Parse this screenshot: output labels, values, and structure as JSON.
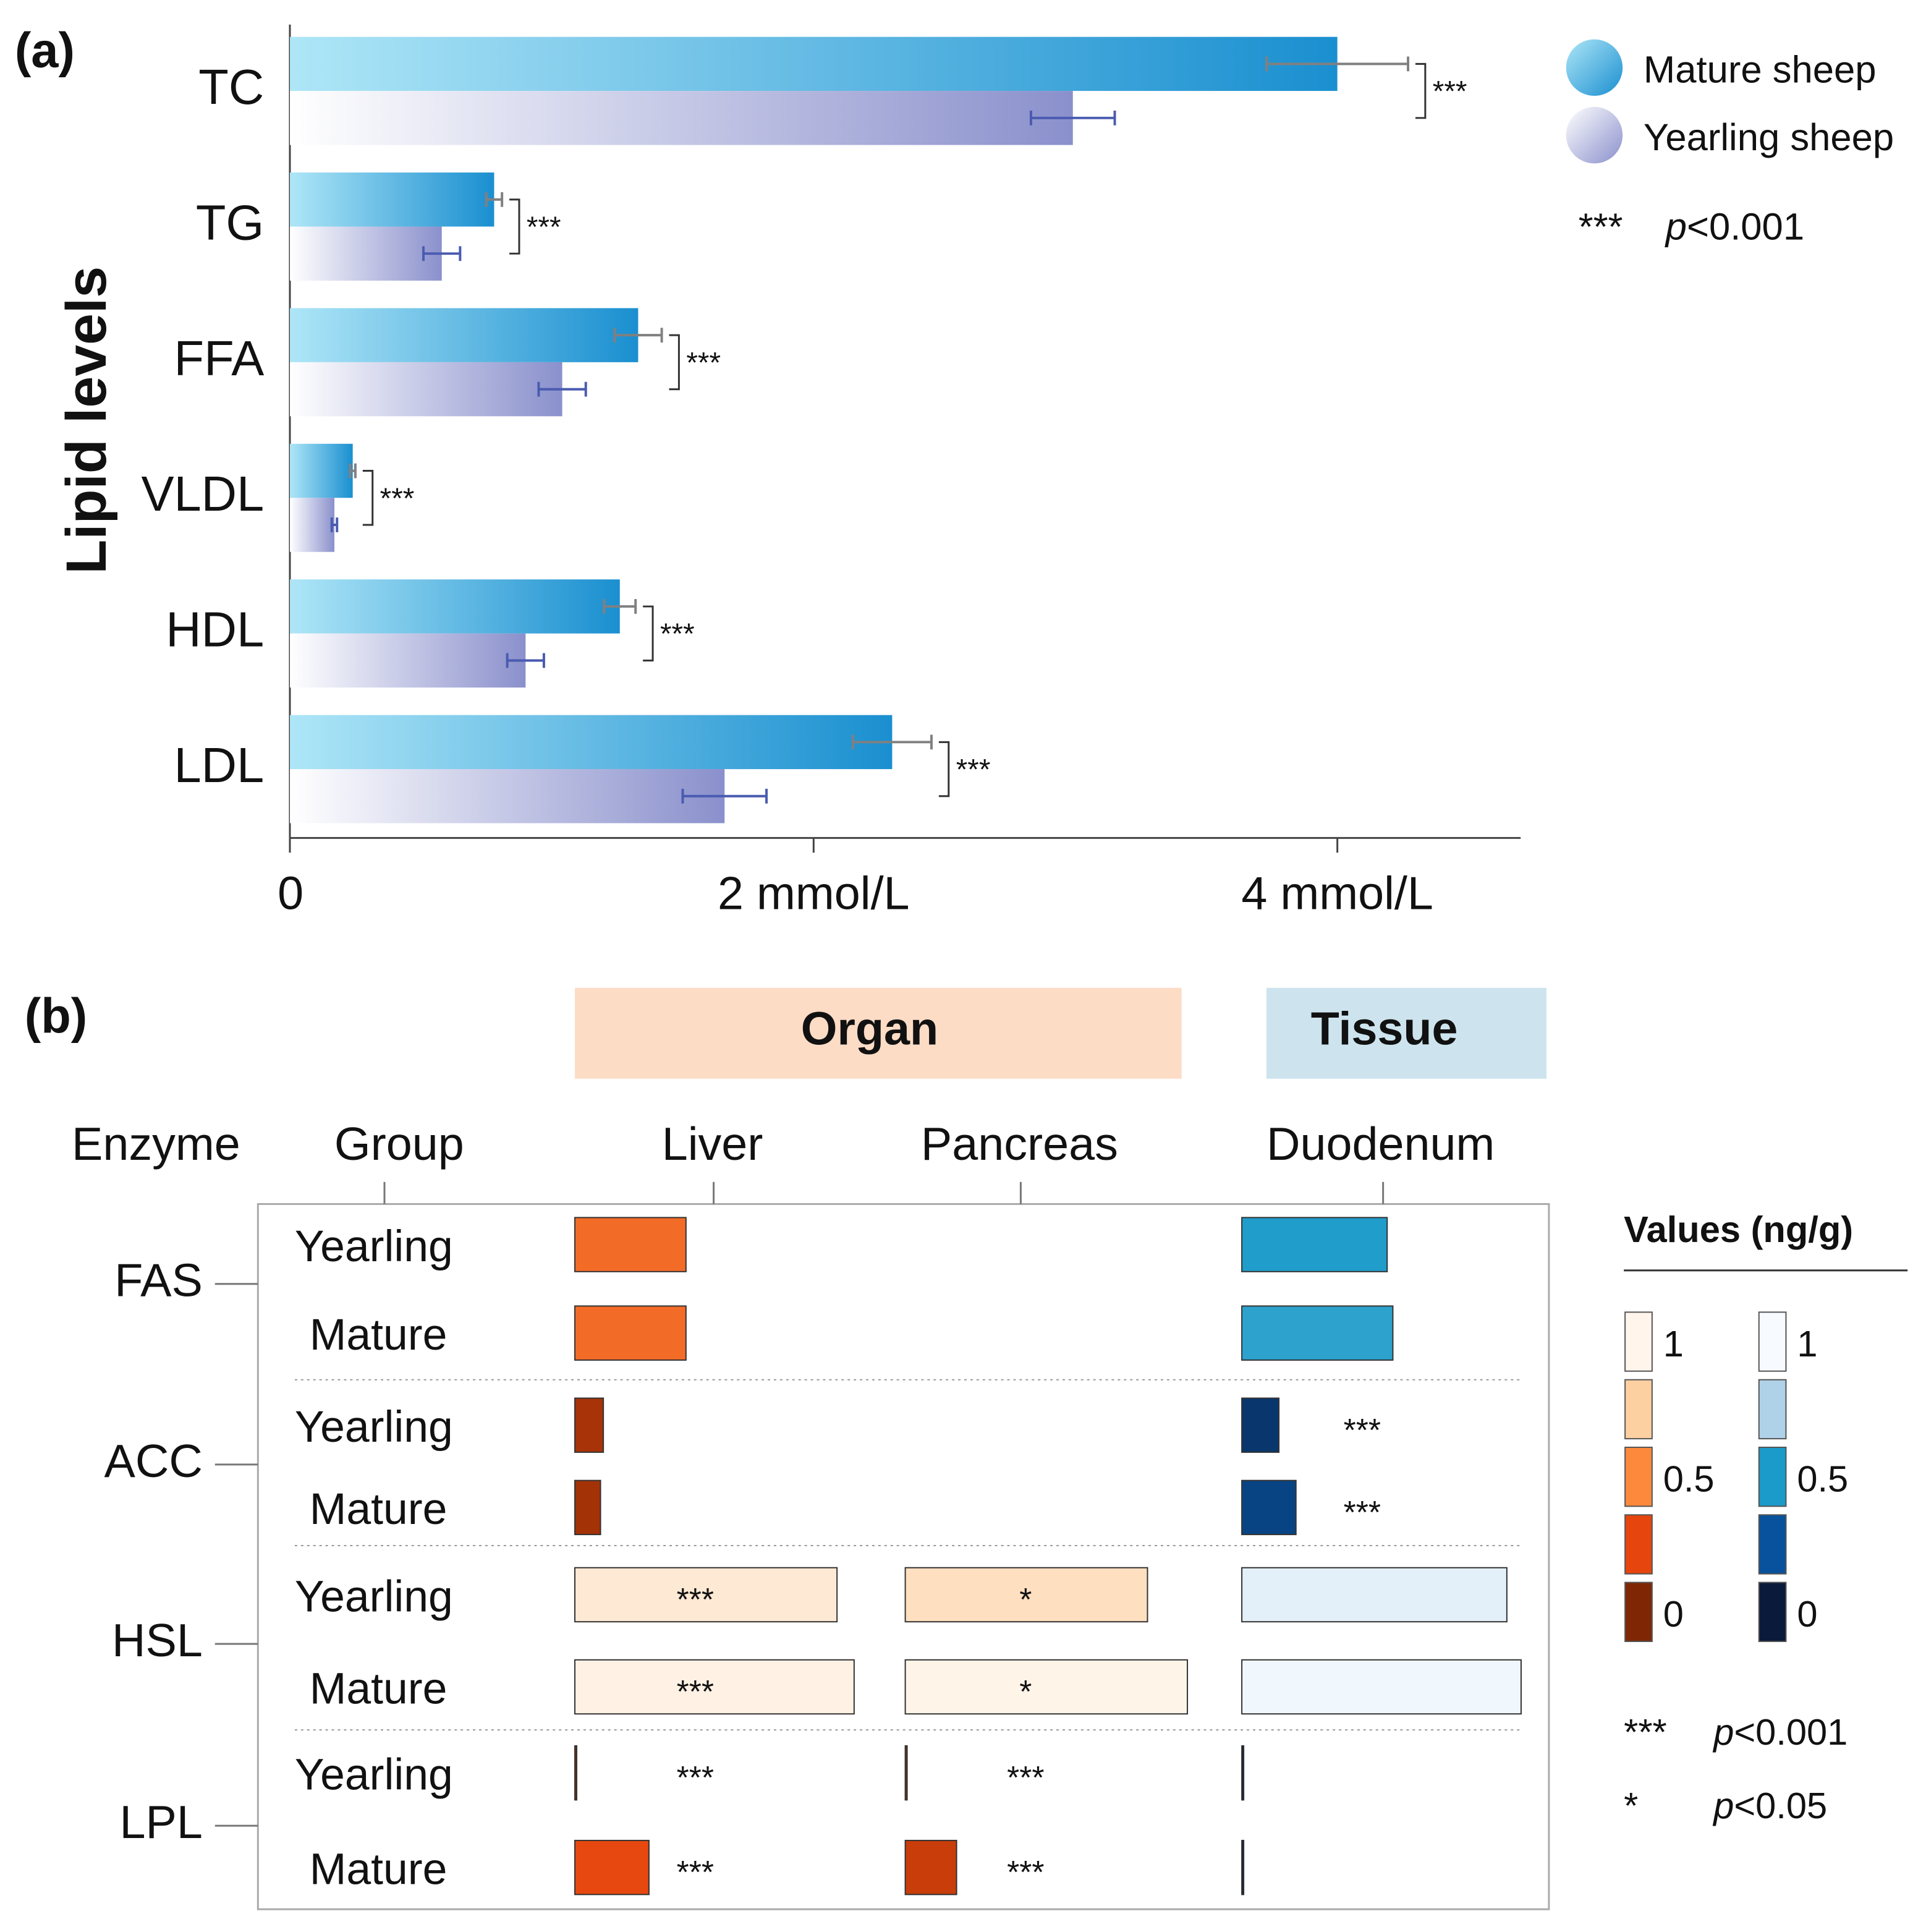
{
  "chart_data": {
    "type": "bar",
    "orientation": "horizontal",
    "panel_label": "(a)",
    "ylabel": "Lipid levels",
    "categories": [
      "TC",
      "TG",
      "FFA",
      "VLDL",
      "HDL",
      "LDL"
    ],
    "series": [
      {
        "name": "Mature sheep",
        "gradient": [
          "#aee6f7",
          "#1a8fd0"
        ],
        "error_color": "#808080",
        "values": [
          4.0,
          0.78,
          1.33,
          0.24,
          1.26,
          2.3
        ],
        "errors": [
          0.27,
          0.03,
          0.09,
          0.01,
          0.06,
          0.15
        ]
      },
      {
        "name": "Yearling sheep",
        "gradient": [
          "#ffffff",
          "#8a90cc"
        ],
        "error_color": "#4a5bb0",
        "values": [
          2.99,
          0.58,
          1.04,
          0.17,
          0.9,
          1.66
        ],
        "errors": [
          0.16,
          0.07,
          0.09,
          0.01,
          0.07,
          0.16
        ]
      }
    ],
    "significance": [
      "***",
      "***",
      "***",
      "***",
      "***",
      "***"
    ],
    "xlim": [
      0,
      4.7
    ],
    "xticks": [
      0,
      {
        "value": 2,
        "label": "2 mmol/L"
      },
      {
        "value": 4,
        "label": "4 mmol/L"
      }
    ],
    "legend_note": {
      "stars": "***",
      "p": "p",
      "text": "<0.001"
    }
  },
  "heatmap": {
    "panel_label": "(b)",
    "groups": [
      {
        "label": "Organ",
        "color": "#fddcc6",
        "text_color": "#e8501a"
      },
      {
        "label": "Tissue",
        "color": "#cde4ee",
        "text_color": "#0a4a8c"
      }
    ],
    "headers": [
      "Enzyme",
      "Group"
    ],
    "columns": [
      {
        "name": "Liver",
        "scale": "orange"
      },
      {
        "name": "Pancreas",
        "scale": "orange"
      },
      {
        "name": "Duodenum",
        "scale": "blue"
      }
    ],
    "enzymes": [
      {
        "name": "FAS",
        "rows": [
          {
            "group": "Yearling",
            "values": [
              0.39,
              null,
              0.51
            ],
            "significance": [
              null,
              null,
              null
            ]
          },
          {
            "group": "Mature",
            "values": [
              0.39,
              null,
              0.53
            ],
            "significance": [
              null,
              null,
              null
            ]
          }
        ]
      },
      {
        "name": "ACC",
        "rows": [
          {
            "group": "Yearling",
            "values": [
              0.1,
              null,
              0.13
            ],
            "significance": [
              null,
              null,
              "***"
            ]
          },
          {
            "group": "Mature",
            "values": [
              0.09,
              null,
              0.19
            ],
            "significance": [
              null,
              null,
              "***"
            ]
          }
        ]
      },
      {
        "name": "HSL",
        "rows": [
          {
            "group": "Yearling",
            "values": [
              0.92,
              0.85,
              0.93
            ],
            "significance": [
              "***",
              "*",
              null
            ]
          },
          {
            "group": "Mature",
            "values": [
              0.98,
              0.99,
              0.98
            ],
            "significance": [
              "***",
              "*",
              null
            ]
          }
        ]
      },
      {
        "name": "LPL",
        "rows": [
          {
            "group": "Yearling",
            "values": [
              0,
              0,
              0
            ],
            "significance": [
              "***",
              "***",
              null
            ]
          },
          {
            "group": "Mature",
            "values": [
              0.26,
              0.18,
              0
            ],
            "significance": [
              "***",
              "***",
              null
            ]
          }
        ]
      }
    ],
    "legend": {
      "title": "Values (ng/g)",
      "ticks": [
        1,
        0.5,
        0
      ]
    },
    "colorscales": {
      "orange": {
        "stops": [
          0,
          0.25,
          0.5,
          0.75,
          1
        ],
        "colors": [
          "#7f2704",
          "#e6450d",
          "#fd8a3c",
          "#fdd0a2",
          "#fff5eb"
        ]
      },
      "blue": {
        "stops": [
          0,
          0.25,
          0.5,
          0.75,
          1
        ],
        "colors": [
          "#0a1a3a",
          "#08519c",
          "#1a9bc9",
          "#b0d2e8",
          "#f7fbff"
        ]
      }
    },
    "notes": [
      {
        "stars": "***",
        "p": "p",
        "text": "<0.001"
      },
      {
        "stars": "*",
        "p": "p",
        "text": "<0.05"
      }
    ]
  }
}
